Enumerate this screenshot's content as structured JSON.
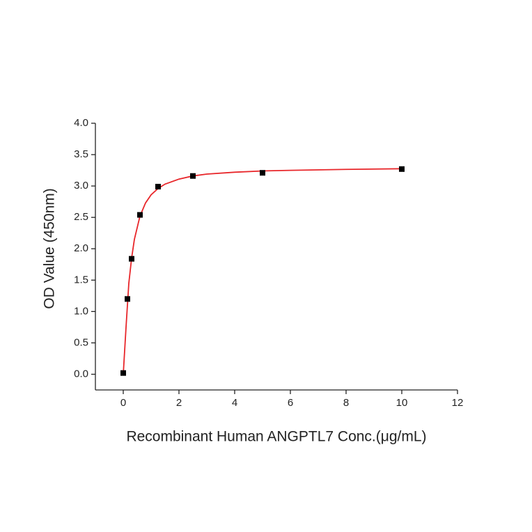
{
  "chart_data": {
    "type": "scatter",
    "x_label": "Recombinant Human ANGPTL7 Conc.(μg/mL)",
    "y_label": "OD Value (450nm)",
    "xlim": [
      -1,
      12
    ],
    "xticks": [
      0,
      2,
      4,
      6,
      8,
      10,
      12
    ],
    "ylim": [
      -0.25,
      4.0
    ],
    "yticks": [
      {
        "value": 0,
        "label": "0.0"
      },
      {
        "value": 0.5,
        "label": "0.5"
      },
      {
        "value": 1,
        "label": "1.0"
      },
      {
        "value": 1.5,
        "label": "1.5"
      },
      {
        "value": 2,
        "label": "2.0"
      },
      {
        "value": 2.5,
        "label": "2.5"
      },
      {
        "value": 3,
        "label": "3.0"
      },
      {
        "value": 3.5,
        "label": "3.5"
      },
      {
        "value": 4,
        "label": "4.0"
      }
    ],
    "points": {
      "color": "#000000",
      "x": [
        0,
        0.15,
        0.3,
        0.6,
        1.25,
        2.5,
        5,
        10
      ],
      "values": [
        0.02,
        1.2,
        1.84,
        2.54,
        2.99,
        3.16,
        3.21,
        3.27
      ]
    },
    "fit": {
      "color": "#e8262a",
      "x": [
        0,
        0.1,
        0.2,
        0.3,
        0.4,
        0.6,
        0.8,
        1,
        1.25,
        1.5,
        2,
        2.5,
        3,
        4,
        5,
        6,
        8,
        10
      ],
      "values": [
        0,
        0.75,
        1.45,
        1.85,
        2.15,
        2.52,
        2.73,
        2.86,
        2.96,
        3.03,
        3.11,
        3.16,
        3.19,
        3.22,
        3.24,
        3.25,
        3.265,
        3.275
      ]
    }
  }
}
